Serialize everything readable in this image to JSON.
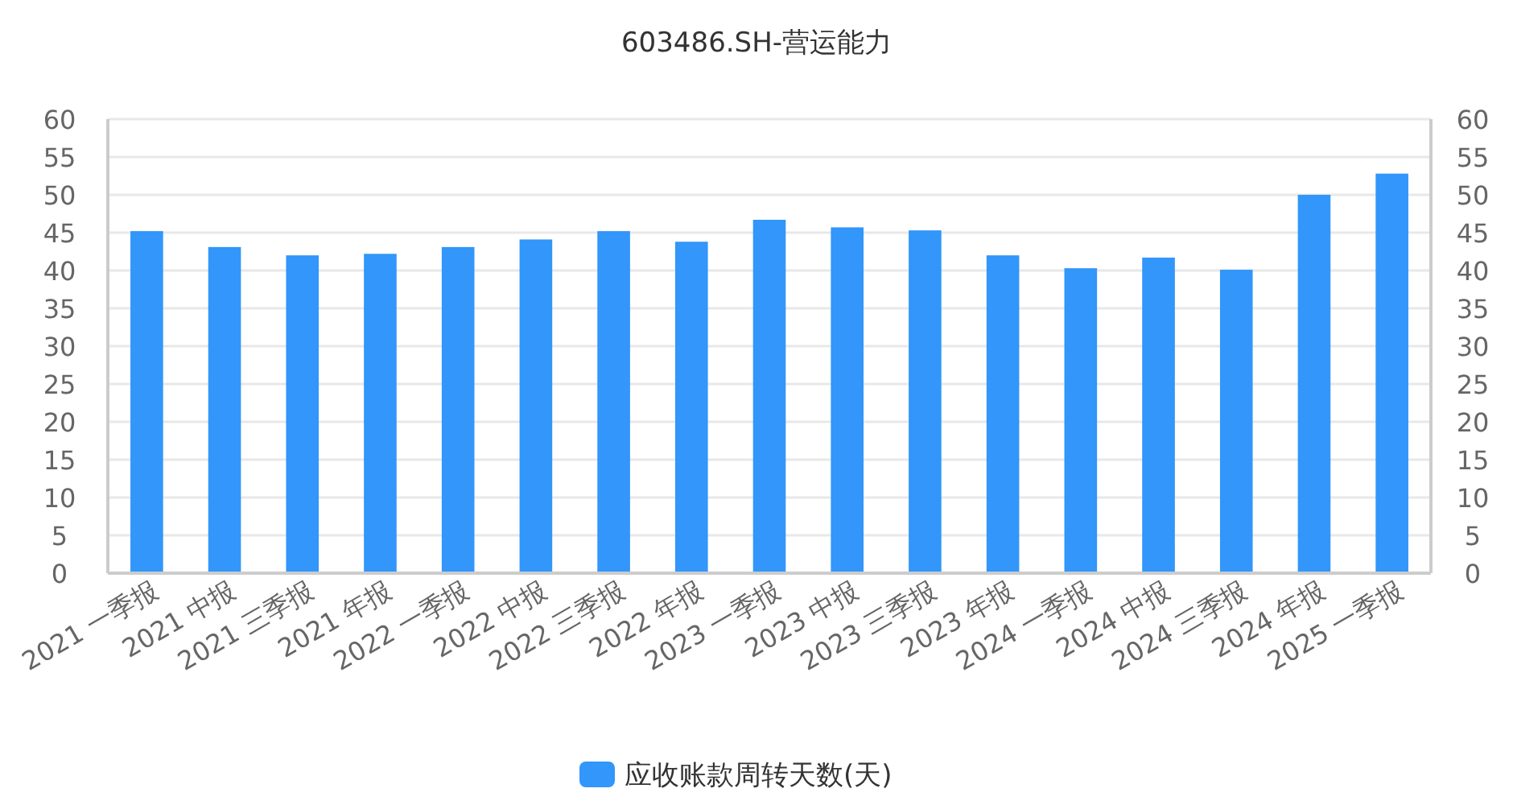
{
  "chart_data": {
    "type": "bar",
    "title": "603486.SH-营运能力",
    "categories": [
      "2021 一季报",
      "2021 中报",
      "2021 三季报",
      "2021 年报",
      "2022 一季报",
      "2022 中报",
      "2022 三季报",
      "2022 年报",
      "2023 一季报",
      "2023 中报",
      "2023 三季报",
      "2023 年报",
      "2024 一季报",
      "2024 中报",
      "2024 三季报",
      "2024 年报",
      "2025 一季报"
    ],
    "series": [
      {
        "name": "应收账款周转天数(天)",
        "color": "#3296fa",
        "values": [
          45.2,
          43.1,
          42.0,
          42.2,
          43.1,
          44.1,
          45.2,
          43.8,
          46.7,
          45.7,
          45.3,
          42.0,
          40.3,
          41.7,
          40.1,
          50.0,
          52.8
        ]
      }
    ],
    "ylim": [
      0,
      60
    ],
    "yticks": [
      0,
      5,
      10,
      15,
      20,
      25,
      30,
      35,
      40,
      45,
      50,
      55,
      60
    ],
    "y2lim": [
      0,
      60
    ],
    "y2ticks": [
      0,
      5,
      10,
      15,
      20,
      25,
      30,
      35,
      40,
      45,
      50,
      55,
      60
    ],
    "grid": "y",
    "legend": "bottom"
  }
}
